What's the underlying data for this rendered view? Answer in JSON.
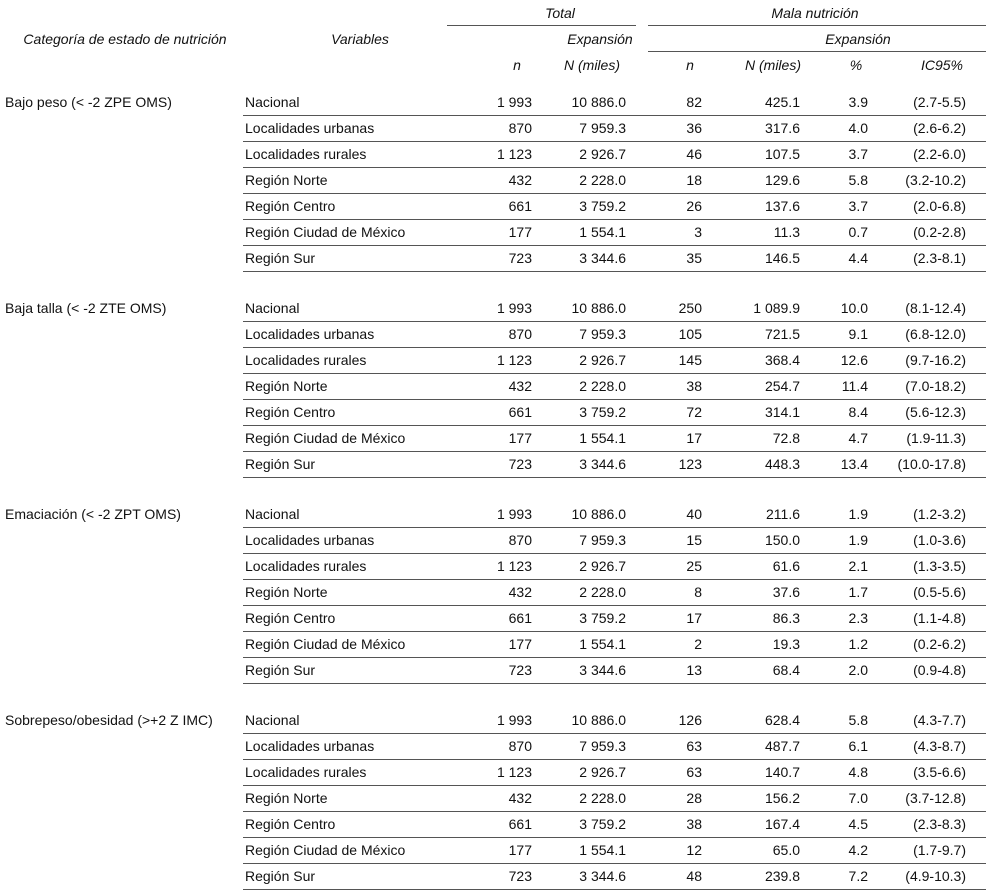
{
  "header": {
    "category": "Categoría de estado de nutrición",
    "variables": "Variables",
    "total": "Total",
    "malnutrition": "Mala nutrición",
    "total_expansion": "Expansión",
    "malnutrition_expansion": "Expansión",
    "columns": [
      "n",
      "N (miles)",
      "n",
      "N (miles)",
      "%",
      "IC95%"
    ]
  },
  "groups": [
    {
      "category": "Bajo peso (< -2 ZPE OMS)",
      "rows": [
        [
          "Nacional",
          "1 993",
          "10 886.0",
          "82",
          "425.1",
          "3.9",
          "(2.7-5.5)"
        ],
        [
          "Localidades urbanas",
          "870",
          "7 959.3",
          "36",
          "317.6",
          "4.0",
          "(2.6-6.2)"
        ],
        [
          "Localidades rurales",
          "1 123",
          "2 926.7",
          "46",
          "107.5",
          "3.7",
          "(2.2-6.0)"
        ],
        [
          "Región Norte",
          "432",
          "2 228.0",
          "18",
          "129.6",
          "5.8",
          "(3.2-10.2)"
        ],
        [
          "Región Centro",
          "661",
          "3 759.2",
          "26",
          "137.6",
          "3.7",
          "(2.0-6.8)"
        ],
        [
          "Región Ciudad de México",
          "177",
          "1 554.1",
          "3",
          "11.3",
          "0.7",
          "(0.2-2.8)"
        ],
        [
          "Región Sur",
          "723",
          "3 344.6",
          "35",
          "146.5",
          "4.4",
          "(2.3-8.1)"
        ]
      ]
    },
    {
      "category": "Baja talla (< -2 ZTE OMS)",
      "rows": [
        [
          "Nacional",
          "1 993",
          "10 886.0",
          "250",
          "1 089.9",
          "10.0",
          "(8.1-12.4)"
        ],
        [
          "Localidades urbanas",
          "870",
          "7 959.3",
          "105",
          "721.5",
          "9.1",
          "(6.8-12.0)"
        ],
        [
          "Localidades rurales",
          "1 123",
          "2 926.7",
          "145",
          "368.4",
          "12.6",
          "(9.7-16.2)"
        ],
        [
          "Región Norte",
          "432",
          "2 228.0",
          "38",
          "254.7",
          "11.4",
          "(7.0-18.2)"
        ],
        [
          "Región Centro",
          "661",
          "3 759.2",
          "72",
          "314.1",
          "8.4",
          "(5.6-12.3)"
        ],
        [
          "Región Ciudad de México",
          "177",
          "1 554.1",
          "17",
          "72.8",
          "4.7",
          "(1.9-11.3)"
        ],
        [
          "Región Sur",
          "723",
          "3 344.6",
          "123",
          "448.3",
          "13.4",
          "(10.0-17.8)"
        ]
      ]
    },
    {
      "category": "Emaciación (< -2 ZPT OMS)",
      "rows": [
        [
          "Nacional",
          "1 993",
          "10 886.0",
          "40",
          "211.6",
          "1.9",
          "(1.2-3.2)"
        ],
        [
          "Localidades urbanas",
          "870",
          "7 959.3",
          "15",
          "150.0",
          "1.9",
          "(1.0-3.6)"
        ],
        [
          "Localidades rurales",
          "1 123",
          "2 926.7",
          "25",
          "61.6",
          "2.1",
          "(1.3-3.5)"
        ],
        [
          "Región Norte",
          "432",
          "2 228.0",
          "8",
          "37.6",
          "1.7",
          "(0.5-5.6)"
        ],
        [
          "Región Centro",
          "661",
          "3 759.2",
          "17",
          "86.3",
          "2.3",
          "(1.1-4.8)"
        ],
        [
          "Región Ciudad de México",
          "177",
          "1 554.1",
          "2",
          "19.3",
          "1.2",
          "(0.2-6.2)"
        ],
        [
          "Región Sur",
          "723",
          "3 344.6",
          "13",
          "68.4",
          "2.0",
          "(0.9-4.8)"
        ]
      ]
    },
    {
      "category": "Sobrepeso/obesidad (>+2 Z IMC)",
      "rows": [
        [
          "Nacional",
          "1 993",
          "10 886.0",
          "126",
          "628.4",
          "5.8",
          "(4.3-7.7)"
        ],
        [
          "Localidades urbanas",
          "870",
          "7 959.3",
          "63",
          "487.7",
          "6.1",
          "(4.3-8.7)"
        ],
        [
          "Localidades rurales",
          "1 123",
          "2 926.7",
          "63",
          "140.7",
          "4.8",
          "(3.5-6.6)"
        ],
        [
          "Región Norte",
          "432",
          "2 228.0",
          "28",
          "156.2",
          "7.0",
          "(3.7-12.8)"
        ],
        [
          "Región Centro",
          "661",
          "3 759.2",
          "38",
          "167.4",
          "4.5",
          "(2.3-8.3)"
        ],
        [
          "Región Ciudad de México",
          "177",
          "1 554.1",
          "12",
          "65.0",
          "4.2",
          "(1.7-9.7)"
        ],
        [
          "Región Sur",
          "723",
          "3 344.6",
          "48",
          "239.8",
          "7.2",
          "(4.9-10.3)"
        ]
      ]
    }
  ]
}
